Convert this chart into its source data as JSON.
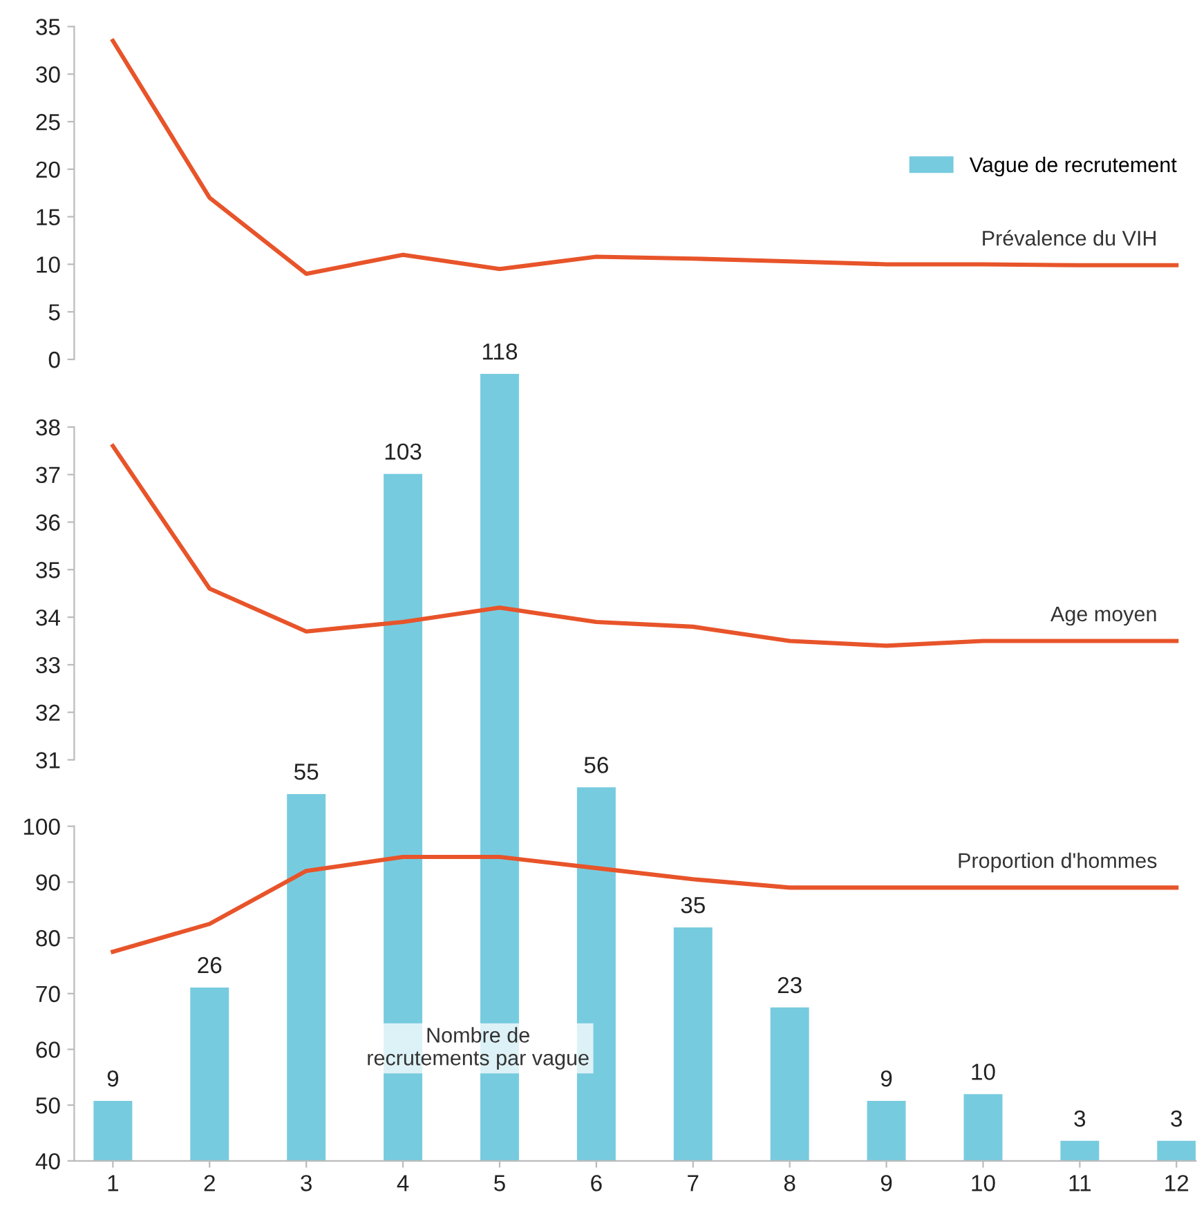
{
  "chart_data": [
    {
      "type": "line",
      "categories": [
        "1",
        "2",
        "3",
        "4",
        "5",
        "6",
        "7",
        "8",
        "9",
        "10",
        "11",
        "12"
      ],
      "series": [
        {
          "name": "Prévalence du VIH",
          "color": "#e8542a",
          "values": [
            33.5,
            17,
            9,
            11,
            9.5,
            10.8,
            10.6,
            10.3,
            10,
            10,
            9.9,
            9.9
          ]
        }
      ],
      "ylim": [
        0,
        35
      ],
      "yticks": [
        0,
        5,
        10,
        15,
        20,
        25,
        30,
        35
      ],
      "tick_labels": "y",
      "grid": false,
      "legend": false
    },
    {
      "type": "line",
      "categories": [
        "1",
        "2",
        "3",
        "4",
        "5",
        "6",
        "7",
        "8",
        "9",
        "10",
        "11",
        "12"
      ],
      "series": [
        {
          "name": "Age moyen",
          "color": "#e8542a",
          "values": [
            37.6,
            34.6,
            33.7,
            33.9,
            34.2,
            33.9,
            33.8,
            33.5,
            33.4,
            33.5,
            33.5,
            33.5
          ]
        }
      ],
      "ylim": [
        31,
        38
      ],
      "yticks": [
        31,
        32,
        33,
        34,
        35,
        36,
        37,
        38
      ],
      "tick_labels": "y",
      "grid": false,
      "legend": false
    },
    {
      "type": "line",
      "categories": [
        "1",
        "2",
        "3",
        "4",
        "5",
        "6",
        "7",
        "8",
        "9",
        "10",
        "11",
        "12"
      ],
      "series": [
        {
          "name": "Proportion d'hommes",
          "color": "#e8542a",
          "values": [
            77.5,
            82.5,
            92,
            94.5,
            94.5,
            92.5,
            90.5,
            89,
            89,
            89,
            89,
            89
          ]
        }
      ],
      "ylim": [
        40,
        100
      ],
      "yticks": [
        40,
        50,
        60,
        70,
        80,
        90,
        100
      ],
      "grid": false,
      "legend": false
    },
    {
      "type": "bar",
      "categories": [
        "1",
        "2",
        "3",
        "4",
        "5",
        "6",
        "7",
        "8",
        "9",
        "10",
        "11",
        "12"
      ],
      "series": [
        {
          "name": "Vague de recrutement",
          "color": "#77cbdf",
          "values": [
            9,
            26,
            55,
            103,
            118,
            56,
            35,
            23,
            9,
            10,
            3,
            3
          ]
        }
      ],
      "data_labels": true,
      "legend": "top right",
      "tick_labels": false,
      "annotations": [
        "Nombre de\nrecrutements par vague"
      ]
    }
  ]
}
